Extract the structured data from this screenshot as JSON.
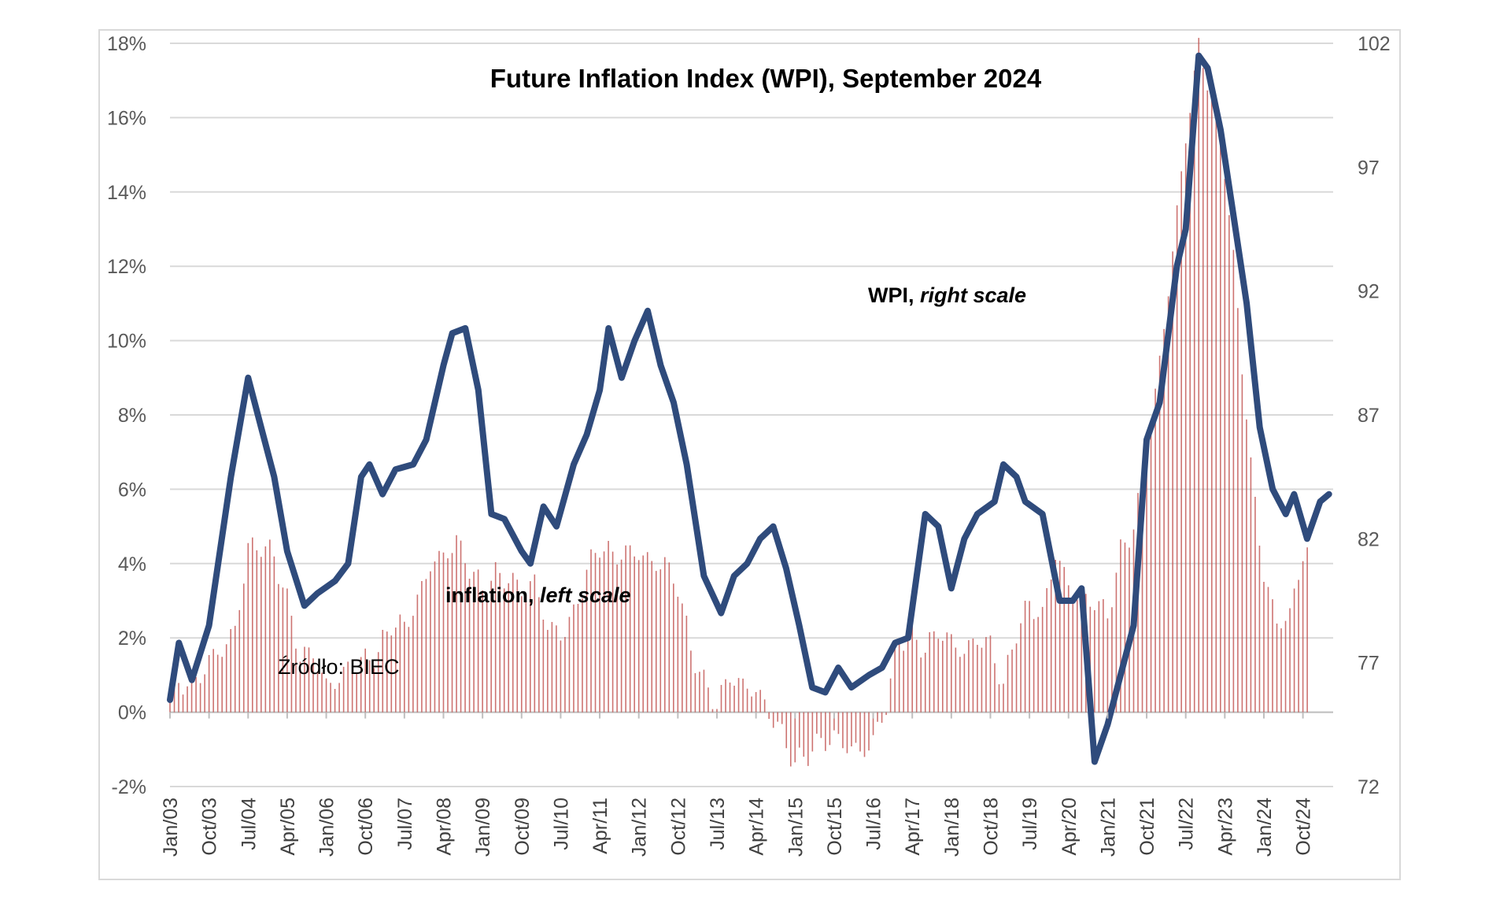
{
  "chart_data": {
    "type": "bar+line",
    "title": "Future Inflation Index (WPI), September 2024",
    "left_axis": {
      "ylim": [
        -2,
        18
      ],
      "tick_labels": [
        "18%",
        "16%",
        "14%",
        "12%",
        "10%",
        "8%",
        "6%",
        "4%",
        "2%",
        "0%",
        "-2%"
      ],
      "tick_values": [
        18,
        16,
        14,
        12,
        10,
        8,
        6,
        4,
        2,
        0,
        -2
      ]
    },
    "right_axis": {
      "ylim": [
        72,
        102
      ],
      "tick_labels": [
        "102",
        "97",
        "92",
        "87",
        "82",
        "77",
        "72"
      ],
      "tick_values": [
        102,
        97,
        92,
        87,
        82,
        77,
        72
      ]
    },
    "x_labels": [
      "Jan/03",
      "Oct/03",
      "Jul/04",
      "Apr/05",
      "Jan/06",
      "Oct/06",
      "Jul/07",
      "Apr/08",
      "Jan/09",
      "Oct/09",
      "Jul/10",
      "Apr/11",
      "Jan/12",
      "Oct/12",
      "Jul/13",
      "Apr/14",
      "Jan/15",
      "Oct/15",
      "Jul/16",
      "Apr/17",
      "Jan/18",
      "Oct/18",
      "Jul/19",
      "Apr/20",
      "Jan/21",
      "Oct/21",
      "Jul/22",
      "Apr/23",
      "Jan/24",
      "Oct/24"
    ],
    "grid": true,
    "series": [
      {
        "name": "inflation",
        "type": "bar",
        "axis": "left",
        "color": "#c0504d",
        "anchors": [
          [
            2003.0,
            0.6
          ],
          [
            2003.25,
            0.8
          ],
          [
            2003.5,
            0.8
          ],
          [
            2003.75,
            1.4
          ],
          [
            2004.0,
            1.7
          ],
          [
            2004.25,
            2.2
          ],
          [
            2004.5,
            4.4
          ],
          [
            2004.75,
            4.5
          ],
          [
            2005.0,
            4.2
          ],
          [
            2005.25,
            3.0
          ],
          [
            2005.5,
            1.5
          ],
          [
            2005.75,
            1.6
          ],
          [
            2006.0,
            0.7
          ],
          [
            2006.25,
            0.9
          ],
          [
            2006.5,
            1.3
          ],
          [
            2006.75,
            1.4
          ],
          [
            2007.0,
            1.6
          ],
          [
            2007.25,
            2.4
          ],
          [
            2007.5,
            2.3
          ],
          [
            2007.75,
            3.0
          ],
          [
            2008.0,
            4.0
          ],
          [
            2008.25,
            4.2
          ],
          [
            2008.5,
            4.6
          ],
          [
            2008.75,
            3.9
          ],
          [
            2009.0,
            3.3
          ],
          [
            2009.25,
            3.7
          ],
          [
            2009.5,
            3.6
          ],
          [
            2009.75,
            3.3
          ],
          [
            2010.0,
            3.5
          ],
          [
            2010.25,
            2.3
          ],
          [
            2010.5,
            2.1
          ],
          [
            2010.75,
            2.6
          ],
          [
            2011.0,
            3.8
          ],
          [
            2011.25,
            4.5
          ],
          [
            2011.5,
            4.2
          ],
          [
            2011.75,
            4.3
          ],
          [
            2012.0,
            4.3
          ],
          [
            2012.25,
            4.0
          ],
          [
            2012.5,
            4.0
          ],
          [
            2012.75,
            3.4
          ],
          [
            2013.0,
            1.7
          ],
          [
            2013.25,
            0.8
          ],
          [
            2013.5,
            0.2
          ],
          [
            2013.75,
            1.0
          ],
          [
            2014.0,
            0.7
          ],
          [
            2014.25,
            0.6
          ],
          [
            2014.5,
            0.0
          ],
          [
            2014.75,
            -0.6
          ],
          [
            2015.0,
            -1.4
          ],
          [
            2015.25,
            -1.1
          ],
          [
            2015.5,
            -0.8
          ],
          [
            2015.75,
            -0.7
          ],
          [
            2016.0,
            -0.9
          ],
          [
            2016.25,
            -1.1
          ],
          [
            2016.5,
            -0.8
          ],
          [
            2016.75,
            0.2
          ],
          [
            2017.0,
            2.0
          ],
          [
            2017.25,
            2.0
          ],
          [
            2017.5,
            1.7
          ],
          [
            2017.75,
            2.2
          ],
          [
            2018.0,
            1.9
          ],
          [
            2018.25,
            1.6
          ],
          [
            2018.5,
            2.0
          ],
          [
            2018.75,
            1.8
          ],
          [
            2019.0,
            0.7
          ],
          [
            2019.25,
            2.2
          ],
          [
            2019.5,
            2.9
          ],
          [
            2019.75,
            2.6
          ],
          [
            2020.0,
            4.3
          ],
          [
            2020.25,
            3.4
          ],
          [
            2020.5,
            3.0
          ],
          [
            2020.75,
            3.0
          ],
          [
            2021.0,
            2.6
          ],
          [
            2021.25,
            4.3
          ],
          [
            2021.5,
            5.0
          ],
          [
            2021.75,
            6.8
          ],
          [
            2022.0,
            9.4
          ],
          [
            2022.25,
            12.4
          ],
          [
            2022.5,
            15.5
          ],
          [
            2022.75,
            17.9
          ],
          [
            2023.0,
            16.6
          ],
          [
            2023.25,
            14.7
          ],
          [
            2023.5,
            10.8
          ],
          [
            2023.75,
            6.6
          ],
          [
            2024.0,
            3.7
          ],
          [
            2024.25,
            2.4
          ],
          [
            2024.5,
            2.6
          ],
          [
            2024.75,
            4.3
          ]
        ]
      },
      {
        "name": "WPI",
        "type": "line",
        "axis": "right",
        "color": "#2f4b7c",
        "anchors": [
          [
            2003.0,
            75.5
          ],
          [
            2003.17,
            77.8
          ],
          [
            2003.42,
            76.3
          ],
          [
            2003.75,
            78.5
          ],
          [
            2004.17,
            84.5
          ],
          [
            2004.5,
            88.5
          ],
          [
            2004.75,
            86.5
          ],
          [
            2005.0,
            84.5
          ],
          [
            2005.25,
            81.5
          ],
          [
            2005.58,
            79.3
          ],
          [
            2005.83,
            79.8
          ],
          [
            2006.17,
            80.3
          ],
          [
            2006.42,
            81.0
          ],
          [
            2006.67,
            84.5
          ],
          [
            2006.83,
            85.0
          ],
          [
            2007.08,
            83.8
          ],
          [
            2007.33,
            84.8
          ],
          [
            2007.67,
            85.0
          ],
          [
            2007.92,
            86.0
          ],
          [
            2008.25,
            89.0
          ],
          [
            2008.42,
            90.3
          ],
          [
            2008.67,
            90.5
          ],
          [
            2008.92,
            88.0
          ],
          [
            2009.17,
            83.0
          ],
          [
            2009.42,
            82.8
          ],
          [
            2009.75,
            81.5
          ],
          [
            2009.92,
            81.0
          ],
          [
            2010.17,
            83.3
          ],
          [
            2010.42,
            82.5
          ],
          [
            2010.75,
            85.0
          ],
          [
            2011.0,
            86.2
          ],
          [
            2011.25,
            88.0
          ],
          [
            2011.42,
            90.5
          ],
          [
            2011.67,
            88.5
          ],
          [
            2011.92,
            90.0
          ],
          [
            2012.17,
            91.2
          ],
          [
            2012.42,
            89.0
          ],
          [
            2012.67,
            87.5
          ],
          [
            2012.92,
            85.0
          ],
          [
            2013.25,
            80.5
          ],
          [
            2013.58,
            79.0
          ],
          [
            2013.83,
            80.5
          ],
          [
            2014.08,
            81.0
          ],
          [
            2014.33,
            82.0
          ],
          [
            2014.58,
            82.5
          ],
          [
            2014.83,
            80.8
          ],
          [
            2015.08,
            78.5
          ],
          [
            2015.33,
            76.0
          ],
          [
            2015.58,
            75.8
          ],
          [
            2015.83,
            76.8
          ],
          [
            2016.08,
            76.0
          ],
          [
            2016.42,
            76.5
          ],
          [
            2016.67,
            76.8
          ],
          [
            2016.92,
            77.8
          ],
          [
            2017.17,
            78.0
          ],
          [
            2017.5,
            83.0
          ],
          [
            2017.75,
            82.5
          ],
          [
            2018.0,
            80.0
          ],
          [
            2018.25,
            82.0
          ],
          [
            2018.5,
            83.0
          ],
          [
            2018.83,
            83.5
          ],
          [
            2019.0,
            85.0
          ],
          [
            2019.25,
            84.5
          ],
          [
            2019.42,
            83.5
          ],
          [
            2019.75,
            83.0
          ],
          [
            2020.08,
            79.5
          ],
          [
            2020.33,
            79.5
          ],
          [
            2020.5,
            80.0
          ],
          [
            2020.75,
            73.0
          ],
          [
            2021.0,
            74.5
          ],
          [
            2021.25,
            76.5
          ],
          [
            2021.5,
            78.5
          ],
          [
            2021.75,
            86.0
          ],
          [
            2022.0,
            87.5
          ],
          [
            2022.33,
            93.0
          ],
          [
            2022.5,
            94.5
          ],
          [
            2022.75,
            101.5
          ],
          [
            2022.92,
            101.0
          ],
          [
            2023.17,
            98.5
          ],
          [
            2023.42,
            95.0
          ],
          [
            2023.67,
            91.5
          ],
          [
            2023.92,
            86.5
          ],
          [
            2024.17,
            84.0
          ],
          [
            2024.42,
            83.0
          ],
          [
            2024.58,
            83.8
          ],
          [
            2024.83,
            82.0
          ],
          [
            2025.08,
            83.5
          ],
          [
            2025.25,
            83.8
          ]
        ]
      }
    ],
    "annotations": [
      {
        "label": "WPI, ",
        "italic": "right scale"
      },
      {
        "label": "inflation, ",
        "italic": "left scale"
      },
      {
        "label": "Źródło: BIEC"
      }
    ]
  }
}
